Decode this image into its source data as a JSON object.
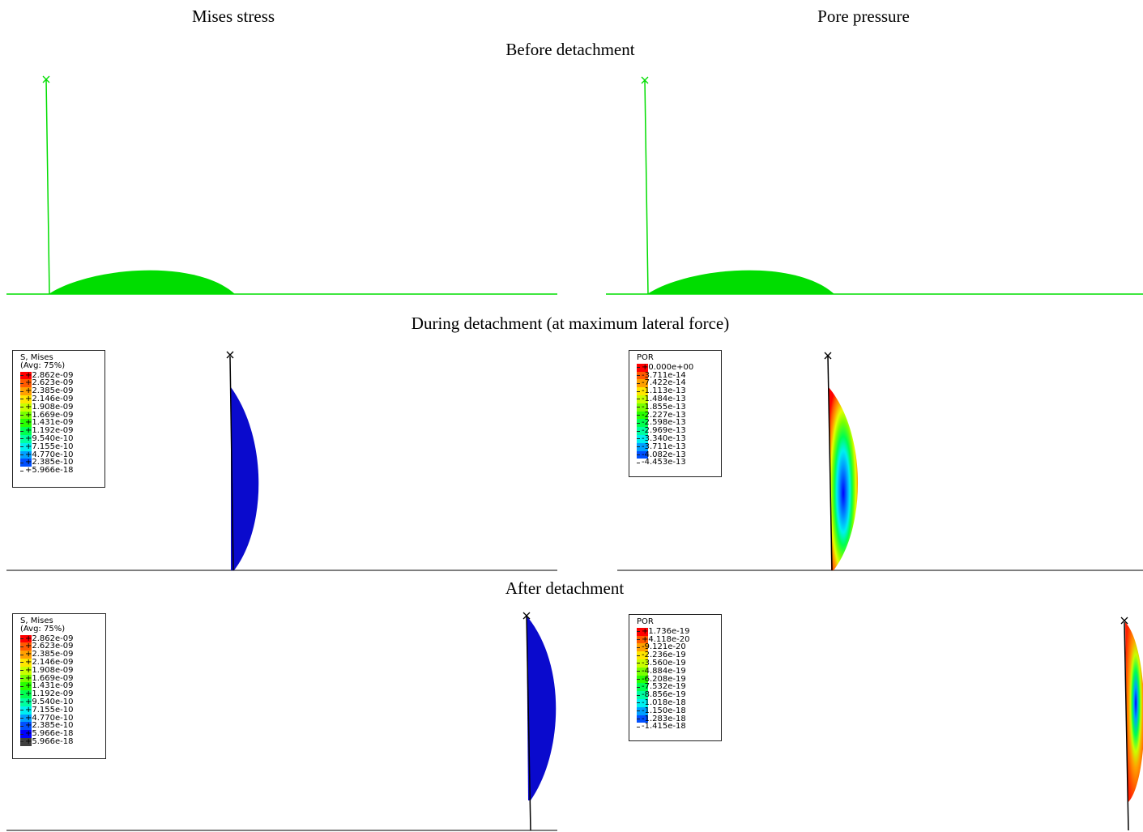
{
  "headings": {
    "col_left": "Mises stress",
    "col_right": "Pore pressure",
    "row1": "Before detachment",
    "row2": "During detachment (at maximum lateral force)",
    "row3": "After detachment"
  },
  "legends": {
    "mises_during": {
      "title": "S, Mises\n(Avg: 75%)",
      "values": [
        "+2.862e-09",
        "+2.623e-09",
        "+2.385e-09",
        "+2.146e-09",
        "+1.908e-09",
        "+1.669e-09",
        "+1.431e-09",
        "+1.192e-09",
        "+9.540e-10",
        "+7.155e-10",
        "+4.770e-10",
        "+2.385e-10",
        "+5.966e-18"
      ]
    },
    "por_during": {
      "title": "POR",
      "values": [
        "+0.000e+00",
        "-3.711e-14",
        "-7.422e-14",
        "-1.113e-13",
        "-1.484e-13",
        "-1.855e-13",
        "-2.227e-13",
        "-2.598e-13",
        "-2.969e-13",
        "-3.340e-13",
        "-3.711e-13",
        "-4.082e-13",
        "-4.453e-13"
      ]
    },
    "mises_after": {
      "title": "S, Mises\n(Avg: 75%)",
      "values": [
        "+2.862e-09",
        "+2.623e-09",
        "+2.385e-09",
        "+2.146e-09",
        "+1.908e-09",
        "+1.669e-09",
        "+1.431e-09",
        "+1.192e-09",
        "+9.540e-10",
        "+7.155e-10",
        "+4.770e-10",
        "+2.385e-10",
        "+5.966e-18",
        "+5.966e-18"
      ]
    },
    "por_after": {
      "title": "POR",
      "values": [
        "+1.736e-19",
        "+4.118e-20",
        "-9.121e-20",
        "-2.236e-19",
        "-3.560e-19",
        "-4.884e-19",
        "-6.208e-19",
        "-7.532e-19",
        "-8.856e-19",
        "-1.018e-18",
        "-1.150e-18",
        "-1.283e-18",
        "-1.415e-18"
      ]
    }
  },
  "colors": {
    "contour_scale": [
      "#ff0000",
      "#ff5a00",
      "#ffa000",
      "#ffe600",
      "#c8ff00",
      "#78ff00",
      "#28ff00",
      "#00ff50",
      "#00ffa0",
      "#00f0f0",
      "#00a0ff",
      "#0050ff",
      "#0000ff"
    ],
    "mises_after_extra": "#404040",
    "undeformed": "#00dd00",
    "mises_fill": "#0a0acd"
  }
}
